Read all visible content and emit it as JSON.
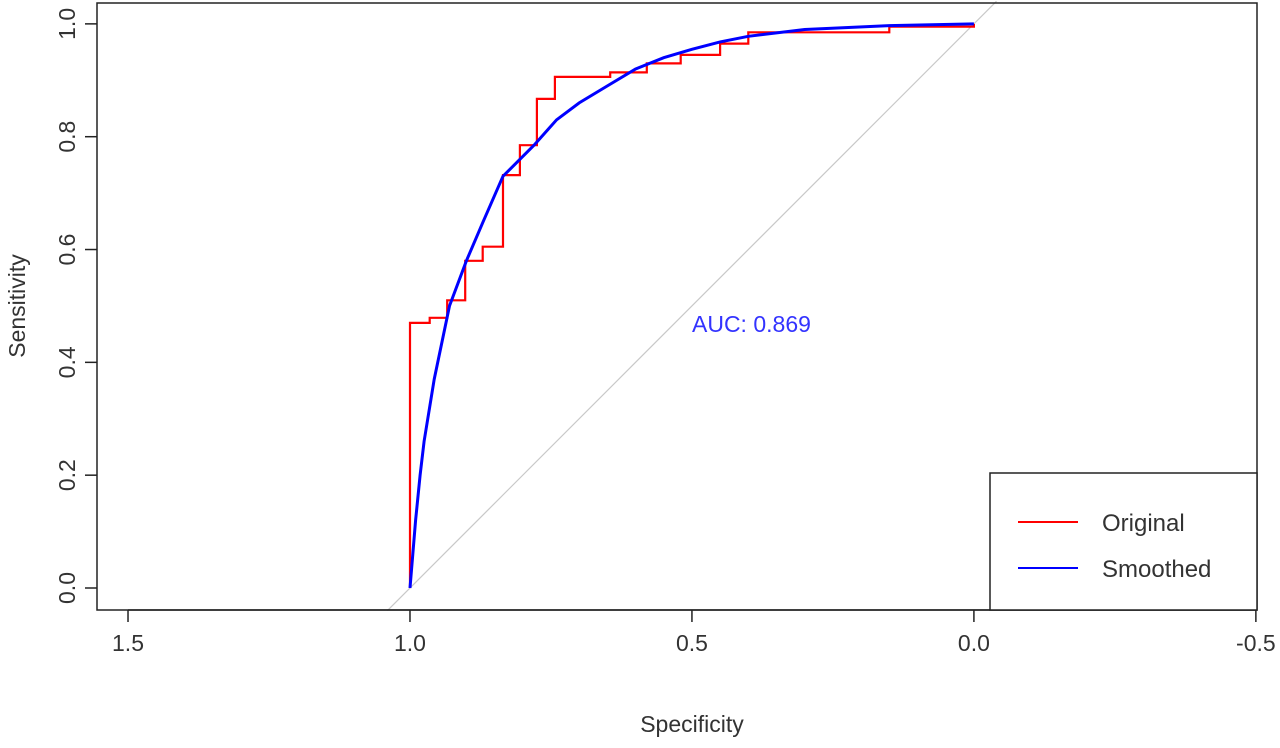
{
  "chart_data": {
    "type": "line",
    "title": "",
    "xlabel": "Specificity",
    "ylabel": "Sensitivity",
    "xlim": [
      1.555,
      -0.502
    ],
    "ylim": [
      -0.039,
      1.037
    ],
    "x_ticks": [
      1.5,
      1.0,
      0.5,
      0.0,
      -0.5
    ],
    "x_tick_labels": [
      "1.5",
      "1.0",
      "0.5",
      "0.0",
      "-0.5"
    ],
    "y_ticks": [
      0.0,
      0.2,
      0.4,
      0.6,
      0.8,
      1.0
    ],
    "y_tick_labels": [
      "0.0",
      "0.2",
      "0.4",
      "0.6",
      "0.8",
      "1.0"
    ],
    "grid": false,
    "legend_position": "bottom-right",
    "annotation": {
      "text": "AUC: 0.869",
      "x": 0.5,
      "y": 0.47,
      "color": "#3333ff"
    },
    "reference_line": {
      "from": [
        1.04,
        -0.04
      ],
      "to": [
        -0.04,
        1.04
      ],
      "color": "#c8c8c8"
    },
    "series": [
      {
        "name": "Original",
        "color": "#ff0000",
        "points": [
          [
            1.0,
            0.0
          ],
          [
            1.0,
            0.47
          ],
          [
            0.965,
            0.47
          ],
          [
            0.965,
            0.479
          ],
          [
            0.934,
            0.479
          ],
          [
            0.934,
            0.51
          ],
          [
            0.902,
            0.51
          ],
          [
            0.902,
            0.58
          ],
          [
            0.871,
            0.58
          ],
          [
            0.871,
            0.605
          ],
          [
            0.835,
            0.605
          ],
          [
            0.835,
            0.732
          ],
          [
            0.805,
            0.732
          ],
          [
            0.805,
            0.785
          ],
          [
            0.775,
            0.785
          ],
          [
            0.775,
            0.867
          ],
          [
            0.743,
            0.867
          ],
          [
            0.743,
            0.906
          ],
          [
            0.645,
            0.906
          ],
          [
            0.645,
            0.914
          ],
          [
            0.58,
            0.914
          ],
          [
            0.58,
            0.93
          ],
          [
            0.52,
            0.93
          ],
          [
            0.52,
            0.945
          ],
          [
            0.45,
            0.945
          ],
          [
            0.45,
            0.965
          ],
          [
            0.4,
            0.965
          ],
          [
            0.4,
            0.985
          ],
          [
            0.15,
            0.985
          ],
          [
            0.15,
            0.995
          ],
          [
            0.0,
            0.995
          ],
          [
            0.0,
            1.0
          ]
        ]
      },
      {
        "name": "Smoothed",
        "color": "#0000ff",
        "points": [
          [
            1.0,
            0.0
          ],
          [
            0.995,
            0.06
          ],
          [
            0.99,
            0.12
          ],
          [
            0.982,
            0.2
          ],
          [
            0.975,
            0.26
          ],
          [
            0.957,
            0.37
          ],
          [
            0.93,
            0.5
          ],
          [
            0.9,
            0.58
          ],
          [
            0.87,
            0.65
          ],
          [
            0.835,
            0.73
          ],
          [
            0.78,
            0.785
          ],
          [
            0.74,
            0.83
          ],
          [
            0.7,
            0.86
          ],
          [
            0.65,
            0.89
          ],
          [
            0.6,
            0.92
          ],
          [
            0.55,
            0.94
          ],
          [
            0.5,
            0.955
          ],
          [
            0.45,
            0.968
          ],
          [
            0.4,
            0.978
          ],
          [
            0.3,
            0.99
          ],
          [
            0.15,
            0.997
          ],
          [
            0.0,
            1.0
          ]
        ]
      }
    ]
  }
}
